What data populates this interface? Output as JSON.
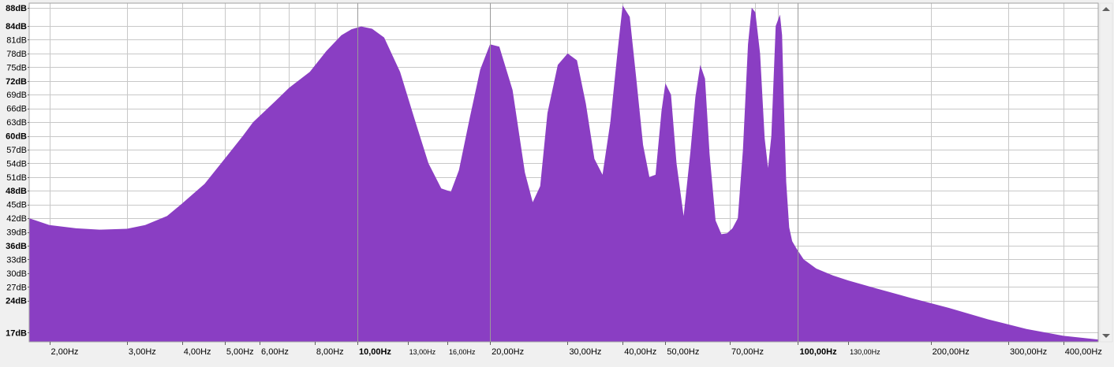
{
  "chart_data": {
    "type": "area",
    "title": "",
    "xlabel": "",
    "ylabel": "",
    "x_scale": "log",
    "xlim": [
      1.8,
      480
    ],
    "ylim": [
      15,
      89
    ],
    "grid": true,
    "colors": {
      "fill": "#8a3ec3",
      "plot_background": "#ffffff",
      "grid_minor": "#c8c8c8",
      "grid_major": "#9a9a9a",
      "window_background": "#f0f0f0",
      "scrollbar": "#f0f0f0",
      "scroll_arrow": "#606060"
    },
    "y_ticks": [
      {
        "value": 88,
        "label": "88dB",
        "bold": true
      },
      {
        "value": 84,
        "label": "84dB",
        "bold": true
      },
      {
        "value": 81,
        "label": "81dB",
        "bold": false
      },
      {
        "value": 78,
        "label": "78dB",
        "bold": false
      },
      {
        "value": 75,
        "label": "75dB",
        "bold": false
      },
      {
        "value": 72,
        "label": "72dB",
        "bold": true
      },
      {
        "value": 69,
        "label": "69dB",
        "bold": false
      },
      {
        "value": 66,
        "label": "66dB",
        "bold": false
      },
      {
        "value": 63,
        "label": "63dB",
        "bold": false
      },
      {
        "value": 60,
        "label": "60dB",
        "bold": true
      },
      {
        "value": 57,
        "label": "57dB",
        "bold": false
      },
      {
        "value": 54,
        "label": "54dB",
        "bold": false
      },
      {
        "value": 51,
        "label": "51dB",
        "bold": false
      },
      {
        "value": 48,
        "label": "48dB",
        "bold": true
      },
      {
        "value": 45,
        "label": "45dB",
        "bold": false
      },
      {
        "value": 42,
        "label": "42dB",
        "bold": false
      },
      {
        "value": 39,
        "label": "39dB",
        "bold": false
      },
      {
        "value": 36,
        "label": "36dB",
        "bold": true
      },
      {
        "value": 33,
        "label": "33dB",
        "bold": false
      },
      {
        "value": 30,
        "label": "30dB",
        "bold": false
      },
      {
        "value": 27,
        "label": "27dB",
        "bold": false
      },
      {
        "value": 24,
        "label": "24dB",
        "bold": true
      },
      {
        "value": 17,
        "label": "17dB",
        "bold": true
      }
    ],
    "x_ticks": [
      {
        "value": 2,
        "label": "2,00Hz",
        "style": "normal"
      },
      {
        "value": 3,
        "label": "3,00Hz",
        "style": "normal"
      },
      {
        "value": 4,
        "label": "4,00Hz",
        "style": "normal"
      },
      {
        "value": 5,
        "label": "5,00Hz",
        "style": "normal"
      },
      {
        "value": 6,
        "label": "6,00Hz",
        "style": "normal"
      },
      {
        "value": 8,
        "label": "8,00Hz",
        "style": "normal"
      },
      {
        "value": 10,
        "label": "10,00Hz",
        "style": "major"
      },
      {
        "value": 13,
        "label": "13,00Hz",
        "style": "small"
      },
      {
        "value": 16,
        "label": "16,00Hz",
        "style": "small"
      },
      {
        "value": 20,
        "label": "20,00Hz",
        "style": "normal"
      },
      {
        "value": 30,
        "label": "30,00Hz",
        "style": "normal"
      },
      {
        "value": 40,
        "label": "40,00Hz",
        "style": "normal"
      },
      {
        "value": 50,
        "label": "50,00Hz",
        "style": "normal"
      },
      {
        "value": 70,
        "label": "70,00Hz",
        "style": "normal"
      },
      {
        "value": 100,
        "label": "100,00Hz",
        "style": "major"
      },
      {
        "value": 130,
        "label": "130,00Hz",
        "style": "small"
      },
      {
        "value": 200,
        "label": "200,00Hz",
        "style": "normal"
      },
      {
        "value": 300,
        "label": "300,00Hz",
        "style": "normal"
      },
      {
        "value": 400,
        "label": "400,00Hz",
        "style": "normal"
      }
    ],
    "major_x_grid": [
      10,
      20,
      100
    ],
    "series": [
      {
        "x": [
          1.8,
          2.0,
          2.3,
          2.6,
          3.0,
          3.3,
          3.7,
          4.0,
          4.5,
          5.0,
          5.5,
          5.8,
          6.5,
          7.0,
          7.8,
          8.5,
          9.2,
          9.7,
          10.2,
          10.8,
          11.5,
          12.5,
          13.5,
          14.5,
          15.5,
          16.3,
          17.0,
          18.0,
          19.0,
          20.0,
          21.0,
          22.5,
          24.0,
          25.0,
          26.0,
          27.0,
          28.5,
          30.0,
          31.5,
          33.0,
          34.5,
          36.0,
          37.5,
          39.0,
          40.0,
          41.5,
          43.0,
          44.5,
          46.0,
          47.5,
          49.0,
          50.0,
          51.5,
          53.0,
          55.0,
          57.0,
          58.5,
          60.0,
          61.5,
          63.0,
          65.0,
          67.0,
          69.0,
          71.0,
          73.0,
          75.0,
          77.0,
          78.5,
          80.0,
          82.0,
          84.0,
          85.5,
          87.0,
          89.0,
          91.0,
          92.0,
          93.0,
          94.0,
          95.5,
          97.0,
          99.0,
          103.0,
          110.0,
          120.0,
          130.0,
          150.0,
          180.0,
          220.0,
          270.0,
          330.0,
          400.0,
          480.0
        ],
        "values": [
          42,
          40.5,
          39.8,
          39.5,
          39.7,
          40.5,
          42.5,
          45.2,
          49.5,
          55,
          60,
          63,
          67.5,
          70.5,
          74,
          78.5,
          82,
          83.3,
          83.9,
          83.4,
          81.5,
          74,
          63.5,
          54,
          48.5,
          47.8,
          52.5,
          64,
          74.5,
          80,
          79.5,
          70,
          52,
          45.5,
          49,
          65,
          75.5,
          78,
          76.5,
          67,
          55,
          51.5,
          63,
          79,
          88.5,
          86,
          72,
          58,
          51,
          51.5,
          65.5,
          71.5,
          69,
          54,
          42.5,
          56.5,
          68.5,
          75.5,
          72.5,
          56,
          41.5,
          38.5,
          38.7,
          39.8,
          42,
          57,
          80,
          88,
          87,
          78,
          59.5,
          53,
          60,
          84,
          86.5,
          82,
          65,
          50,
          40,
          37,
          35.5,
          33,
          31,
          29.5,
          28.4,
          26.7,
          24.6,
          22.4,
          19.9,
          17.8,
          16.3,
          15.5
        ]
      }
    ]
  }
}
